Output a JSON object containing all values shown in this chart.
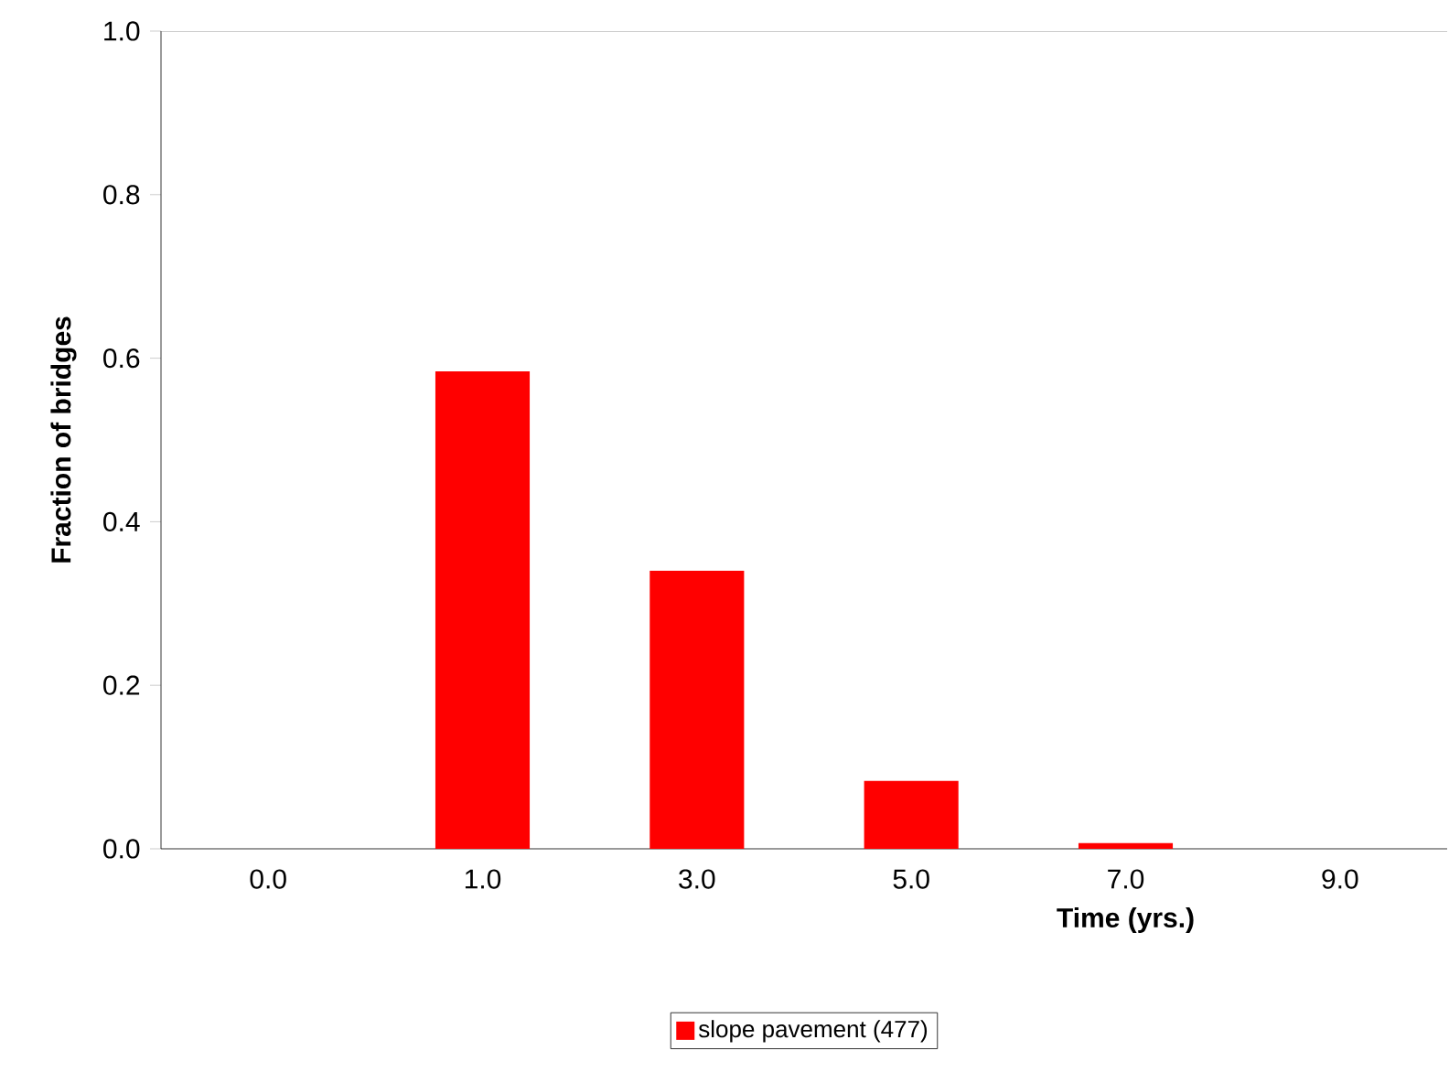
{
  "chart_data": {
    "type": "bar",
    "xlabel": "Time (yrs.)",
    "ylabel": "Fraction of bridges",
    "categories": [
      "0.0",
      "1.0",
      "3.0",
      "5.0",
      "7.0",
      "9.0"
    ],
    "series": [
      {
        "name": "slope pavement (477)",
        "color": "#ff0000",
        "values": [
          0,
          0.584,
          0.34,
          0.083,
          0.007,
          0
        ]
      }
    ],
    "ylim": [
      0,
      1.0
    ],
    "yticks": [
      {
        "value": 0,
        "label": "0.0"
      },
      {
        "value": 0.2,
        "label": "0.2"
      },
      {
        "value": 0.4,
        "label": "0.4"
      },
      {
        "value": 0.6,
        "label": "0.6"
      },
      {
        "value": 0.8,
        "label": "0.8"
      },
      {
        "value": 1.0,
        "label": "1.0"
      }
    ],
    "legend": "bottom",
    "grid": false
  }
}
